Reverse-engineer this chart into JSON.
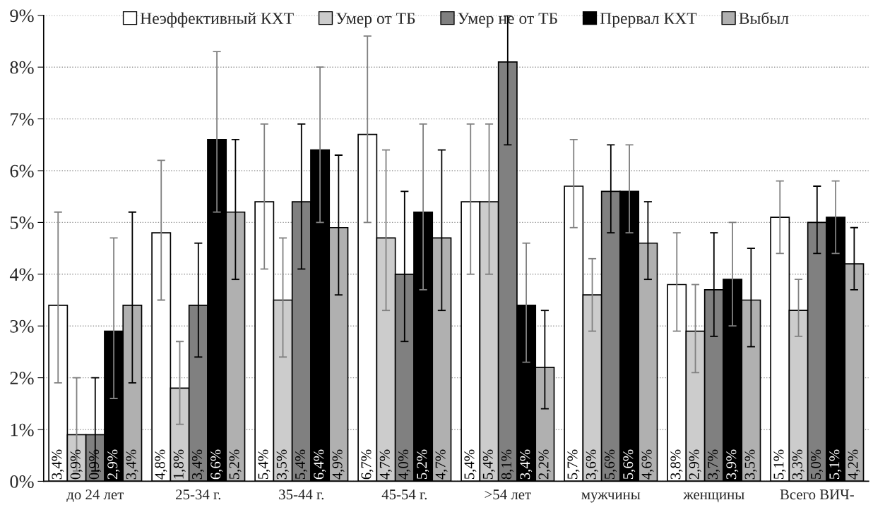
{
  "chart_data": {
    "type": "bar",
    "categories": [
      "до 24 лет",
      "25-34 г.",
      "35-44 г.",
      "45-54 г.",
      ">54 лет",
      "мужчины",
      "женщины",
      "Всего ВИЧ-"
    ],
    "series": [
      {
        "name": "Неэффективный КХТ",
        "color": "#ffffff",
        "values": [
          3.4,
          4.8,
          5.4,
          6.7,
          5.4,
          5.7,
          3.8,
          5.1
        ],
        "value_labels": [
          "3,4%",
          "4,8%",
          "5,4%",
          "6,7%",
          "5,4%",
          "5,7%",
          "3,8%",
          "5,1%"
        ],
        "errors": [
          [
            1.9,
            5.2
          ],
          [
            3.5,
            6.2
          ],
          [
            4.1,
            6.9
          ],
          [
            5.0,
            8.6
          ],
          [
            4.0,
            6.9
          ],
          [
            4.9,
            6.6
          ],
          [
            2.9,
            4.8
          ],
          [
            4.4,
            5.8
          ]
        ]
      },
      {
        "name": "Умер от ТБ",
        "color": "#cccccc",
        "values": [
          0.9,
          1.8,
          3.5,
          4.7,
          5.4,
          3.6,
          2.9,
          3.3
        ],
        "value_labels": [
          "0,9%",
          "1,8%",
          "3,5%",
          "4,7%",
          "5,4%",
          "3,6%",
          "2,9%",
          "3,3%"
        ],
        "errors": [
          [
            0.2,
            2.0
          ],
          [
            1.1,
            2.7
          ],
          [
            2.4,
            4.7
          ],
          [
            3.3,
            6.4
          ],
          [
            4.0,
            6.9
          ],
          [
            2.9,
            4.3
          ],
          [
            2.1,
            3.8
          ],
          [
            2.8,
            3.9
          ]
        ]
      },
      {
        "name": "Умер не от ТБ",
        "color": "#808080",
        "values": [
          0.9,
          3.4,
          5.4,
          4.0,
          8.1,
          5.6,
          3.7,
          5.0
        ],
        "value_labels": [
          "0,9%",
          "3,4%",
          "5,4%",
          "4,0%",
          "8,1%",
          "5,6%",
          "3,7%",
          "5,0%"
        ],
        "errors": [
          [
            0.2,
            2.0
          ],
          [
            2.4,
            4.6
          ],
          [
            4.1,
            6.9
          ],
          [
            2.7,
            5.6
          ],
          [
            6.5,
            9.0
          ],
          [
            4.8,
            6.5
          ],
          [
            2.8,
            4.8
          ],
          [
            4.4,
            5.7
          ]
        ]
      },
      {
        "name": "Прервал КХТ",
        "color": "#000000",
        "values": [
          2.9,
          6.6,
          6.4,
          5.2,
          3.4,
          5.6,
          3.9,
          5.1
        ],
        "value_labels": [
          "2,9%",
          "6,6%",
          "6,4%",
          "5,2%",
          "3,4%",
          "5,6%",
          "3,9%",
          "5,1%"
        ],
        "errors": [
          [
            1.6,
            4.7
          ],
          [
            5.2,
            8.3
          ],
          [
            5.0,
            8.0
          ],
          [
            3.7,
            6.9
          ],
          [
            2.3,
            4.6
          ],
          [
            4.8,
            6.5
          ],
          [
            3.0,
            5.0
          ],
          [
            4.4,
            5.8
          ]
        ]
      },
      {
        "name": "Выбыл",
        "color": "#b0b0b0",
        "values": [
          3.4,
          5.2,
          4.9,
          4.7,
          2.2,
          4.6,
          3.5,
          4.2
        ],
        "value_labels": [
          "3,4%",
          "5,2%",
          "4,9%",
          "4,7%",
          "2,2%",
          "4,6%",
          "3,5%",
          "4,2%"
        ],
        "errors": [
          [
            1.9,
            5.2
          ],
          [
            3.9,
            6.6
          ],
          [
            3.6,
            6.3
          ],
          [
            3.3,
            6.4
          ],
          [
            1.4,
            3.3
          ],
          [
            3.9,
            5.4
          ],
          [
            2.6,
            4.5
          ],
          [
            3.7,
            4.9
          ]
        ]
      }
    ],
    "ylim": [
      0,
      9
    ],
    "yticks": [
      {
        "value": 0,
        "label": "0%"
      },
      {
        "value": 1,
        "label": "1%"
      },
      {
        "value": 2,
        "label": "2%"
      },
      {
        "value": 3,
        "label": "3%"
      },
      {
        "value": 4,
        "label": "4%"
      },
      {
        "value": 5,
        "label": "5%"
      },
      {
        "value": 6,
        "label": "6%"
      },
      {
        "value": 7,
        "label": "7%"
      },
      {
        "value": 8,
        "label": "8%"
      },
      {
        "value": 9,
        "label": "9%"
      }
    ],
    "grid": "y",
    "legend": "top"
  }
}
